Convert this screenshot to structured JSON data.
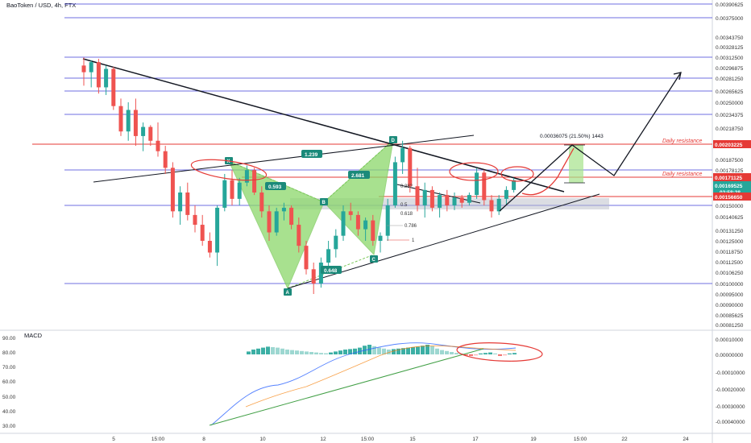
{
  "header": {
    "title": "BaoToken / USD, 4h, FTX"
  },
  "colors": {
    "up": "#26a69a",
    "down": "#ef5350",
    "level_line": "#3f3fd8",
    "resistance": "#e53935",
    "pattern": "#8bd86a",
    "macd_up": "#26a69a",
    "macd_down": "#ef5350",
    "macd_line": "#2962ff",
    "signal_line": "#f57c00",
    "trend_green": "#43a047",
    "label_teal": "#1b8a7a"
  },
  "chart_data": [
    {
      "type": "candlestick",
      "title": "BaoToken / USD, 4h, FTX",
      "y_axis_ticks": [
        "0.00390625",
        "0.00375000",
        "0.00343750",
        "0.00328125",
        "0.00312500",
        "0.00296875",
        "0.00281250",
        "0.00265625",
        "0.00250000",
        "0.00234375",
        "0.00218750",
        "0.00203125",
        "0.00187500",
        "0.00178125",
        "0.00171875",
        "0.00160000",
        "0.00150000",
        "0.00140625",
        "0.00131250",
        "0.00125000",
        "0.00118750",
        "0.00112500",
        "0.00106250",
        "0.00100000",
        "0.00095000",
        "0.00090000",
        "0.00085625",
        "0.00081250"
      ],
      "x_axis_ticks": [
        "5",
        "15:00",
        "8",
        "10",
        "12",
        "15:00",
        "15",
        "17",
        "19",
        "15:00",
        "22",
        "24"
      ],
      "price_tags": [
        {
          "text": "0.00203225",
          "kind": "resistance"
        },
        {
          "text": "0.00171125",
          "kind": "resistance"
        },
        {
          "text": "0.00169525",
          "kind": "current"
        },
        {
          "text": "02:58:28",
          "kind": "countdown"
        },
        {
          "text": "0.00156650",
          "kind": "resistance"
        }
      ],
      "horizontal_levels": [
        "0.00390625",
        "0.00375000",
        "0.00312500",
        "0.00281250",
        "0.00265625",
        "0.00234375",
        "0.00178125",
        "0.00150000",
        "0.00100000"
      ],
      "resistance_labels": [
        "Daily resistance",
        "Daily resistance"
      ],
      "harmonic_points": [
        "X",
        "A",
        "B",
        "C",
        "D"
      ],
      "ratio_labels": [
        "1.239",
        "0.593",
        "2.681",
        "0.648"
      ],
      "fib_labels": [
        "0.382",
        "0.5",
        "0.618",
        "0.786",
        "1"
      ],
      "target_label": "0.00036075 (21.50%) 1443",
      "candles": [
        {
          "t": 0,
          "o": 0.003,
          "h": 0.00312,
          "l": 0.00272,
          "c": 0.0029
        },
        {
          "t": 1,
          "o": 0.0029,
          "h": 0.00308,
          "l": 0.0027,
          "c": 0.00305
        },
        {
          "t": 2,
          "o": 0.00305,
          "h": 0.0031,
          "l": 0.00262,
          "c": 0.0027
        },
        {
          "t": 3,
          "o": 0.0027,
          "h": 0.003,
          "l": 0.0026,
          "c": 0.00295
        },
        {
          "t": 4,
          "o": 0.00295,
          "h": 0.00298,
          "l": 0.0024,
          "c": 0.00245
        },
        {
          "t": 5,
          "o": 0.00245,
          "h": 0.00255,
          "l": 0.0021,
          "c": 0.00215
        },
        {
          "t": 6,
          "o": 0.00215,
          "h": 0.0025,
          "l": 0.00205,
          "c": 0.0024
        },
        {
          "t": 7,
          "o": 0.0024,
          "h": 0.00255,
          "l": 0.002,
          "c": 0.0021
        },
        {
          "t": 8,
          "o": 0.0021,
          "h": 0.00225,
          "l": 0.00195,
          "c": 0.0022
        },
        {
          "t": 9,
          "o": 0.0022,
          "h": 0.00222,
          "l": 0.002,
          "c": 0.00205
        },
        {
          "t": 10,
          "o": 0.00205,
          "h": 0.00225,
          "l": 0.0019,
          "c": 0.00195
        },
        {
          "t": 11,
          "o": 0.00195,
          "h": 0.002,
          "l": 0.00175,
          "c": 0.0018
        },
        {
          "t": 12,
          "o": 0.0018,
          "h": 0.00185,
          "l": 0.0014,
          "c": 0.00145
        },
        {
          "t": 13,
          "o": 0.00145,
          "h": 0.00165,
          "l": 0.00135,
          "c": 0.0016
        },
        {
          "t": 14,
          "o": 0.0016,
          "h": 0.00168,
          "l": 0.00138,
          "c": 0.00142
        },
        {
          "t": 15,
          "o": 0.00142,
          "h": 0.0015,
          "l": 0.0013,
          "c": 0.00135
        },
        {
          "t": 16,
          "o": 0.00135,
          "h": 0.00142,
          "l": 0.00122,
          "c": 0.00125
        },
        {
          "t": 17,
          "o": 0.00125,
          "h": 0.0013,
          "l": 0.00115,
          "c": 0.00118
        },
        {
          "t": 18,
          "o": 0.00118,
          "h": 0.0015,
          "l": 0.0011,
          "c": 0.00148
        },
        {
          "t": 19,
          "o": 0.00148,
          "h": 0.00175,
          "l": 0.00145,
          "c": 0.0017
        },
        {
          "t": 20,
          "o": 0.0017,
          "h": 0.00178,
          "l": 0.0015,
          "c": 0.00155
        },
        {
          "t": 21,
          "o": 0.00155,
          "h": 0.00172,
          "l": 0.0015,
          "c": 0.00168
        },
        {
          "t": 22,
          "o": 0.00168,
          "h": 0.00182,
          "l": 0.00165,
          "c": 0.00178
        },
        {
          "t": 23,
          "o": 0.00178,
          "h": 0.0018,
          "l": 0.00158,
          "c": 0.0016
        },
        {
          "t": 24,
          "o": 0.0016,
          "h": 0.00165,
          "l": 0.0014,
          "c": 0.00145
        },
        {
          "t": 25,
          "o": 0.00145,
          "h": 0.0015,
          "l": 0.00125,
          "c": 0.0013
        },
        {
          "t": 26,
          "o": 0.0013,
          "h": 0.00148,
          "l": 0.00128,
          "c": 0.00145
        },
        {
          "t": 27,
          "o": 0.00145,
          "h": 0.00152,
          "l": 0.00138,
          "c": 0.00148
        },
        {
          "t": 28,
          "o": 0.00148,
          "h": 0.0015,
          "l": 0.00132,
          "c": 0.00135
        },
        {
          "t": 29,
          "o": 0.00135,
          "h": 0.0014,
          "l": 0.00118,
          "c": 0.00122
        },
        {
          "t": 30,
          "o": 0.00122,
          "h": 0.00125,
          "l": 0.00105,
          "c": 0.00108
        },
        {
          "t": 31,
          "o": 0.00108,
          "h": 0.00112,
          "l": 0.00095,
          "c": 0.001
        },
        {
          "t": 32,
          "o": 0.001,
          "h": 0.00115,
          "l": 0.00098,
          "c": 0.00112
        },
        {
          "t": 33,
          "o": 0.00112,
          "h": 0.00125,
          "l": 0.00108,
          "c": 0.0012
        },
        {
          "t": 34,
          "o": 0.0012,
          "h": 0.00132,
          "l": 0.00115,
          "c": 0.00128
        },
        {
          "t": 35,
          "o": 0.00128,
          "h": 0.0015,
          "l": 0.00125,
          "c": 0.00145
        },
        {
          "t": 36,
          "o": 0.00145,
          "h": 0.00152,
          "l": 0.00138,
          "c": 0.00142
        },
        {
          "t": 37,
          "o": 0.00142,
          "h": 0.00145,
          "l": 0.00128,
          "c": 0.00132
        },
        {
          "t": 38,
          "o": 0.00132,
          "h": 0.0014,
          "l": 0.00125,
          "c": 0.00138
        },
        {
          "t": 39,
          "o": 0.00138,
          "h": 0.00142,
          "l": 0.00122,
          "c": 0.00125
        },
        {
          "t": 40,
          "o": 0.00125,
          "h": 0.0013,
          "l": 0.00118,
          "c": 0.00128
        },
        {
          "t": 41,
          "o": 0.00128,
          "h": 0.00155,
          "l": 0.00125,
          "c": 0.0015
        },
        {
          "t": 42,
          "o": 0.0015,
          "h": 0.0019,
          "l": 0.00148,
          "c": 0.00185
        },
        {
          "t": 43,
          "o": 0.00185,
          "h": 0.00205,
          "l": 0.00175,
          "c": 0.00198
        },
        {
          "t": 44,
          "o": 0.00198,
          "h": 0.002,
          "l": 0.0016,
          "c": 0.00165
        },
        {
          "t": 45,
          "o": 0.00165,
          "h": 0.0018,
          "l": 0.00145,
          "c": 0.0015
        },
        {
          "t": 46,
          "o": 0.0015,
          "h": 0.00168,
          "l": 0.0014,
          "c": 0.00162
        },
        {
          "t": 47,
          "o": 0.00162,
          "h": 0.00165,
          "l": 0.00145,
          "c": 0.00148
        },
        {
          "t": 48,
          "o": 0.00148,
          "h": 0.0016,
          "l": 0.0014,
          "c": 0.00158
        },
        {
          "t": 49,
          "o": 0.00158,
          "h": 0.00162,
          "l": 0.00145,
          "c": 0.0015
        },
        {
          "t": 50,
          "o": 0.0015,
          "h": 0.0016,
          "l": 0.00146,
          "c": 0.00156
        },
        {
          "t": 51,
          "o": 0.00156,
          "h": 0.00158,
          "l": 0.00148,
          "c": 0.00152
        },
        {
          "t": 52,
          "o": 0.00152,
          "h": 0.0016,
          "l": 0.0015,
          "c": 0.00158
        },
        {
          "t": 53,
          "o": 0.00158,
          "h": 0.0018,
          "l": 0.00155,
          "c": 0.00176
        },
        {
          "t": 54,
          "o": 0.00176,
          "h": 0.00178,
          "l": 0.0015,
          "c": 0.00154
        },
        {
          "t": 55,
          "o": 0.00154,
          "h": 0.00158,
          "l": 0.0014,
          "c": 0.00145
        },
        {
          "t": 56,
          "o": 0.00145,
          "h": 0.00158,
          "l": 0.00142,
          "c": 0.00155
        },
        {
          "t": 57,
          "o": 0.00155,
          "h": 0.00165,
          "l": 0.0015,
          "c": 0.00162
        },
        {
          "t": 58,
          "o": 0.00162,
          "h": 0.00172,
          "l": 0.0016,
          "c": 0.0017
        }
      ]
    },
    {
      "type": "bar",
      "title": "MACD",
      "y_axis_ticks": [
        "0.00010000",
        "0.00000000",
        "-0.00010000",
        "-0.00020000",
        "-0.00030000",
        "-0.00040000"
      ],
      "left_axis_ticks": [
        "90.00",
        "80.00",
        "70.00",
        "60.00",
        "50.00",
        "40.00",
        "30.00"
      ],
      "histogram": [
        0.3,
        0.5,
        0.6,
        0.7,
        0.8,
        0.75,
        0.7,
        0.6,
        0.5,
        0.45,
        0.4,
        0.35,
        0.3,
        0.25,
        0.2,
        0.15,
        0.12,
        0.2,
        0.3,
        0.4,
        0.5,
        0.55,
        0.6,
        0.7,
        0.9,
        1.0,
        0.85,
        0.7,
        0.6,
        0.5,
        0.55,
        0.6,
        0.65,
        0.7,
        0.75,
        0.8,
        0.9,
        1.0,
        0.85,
        0.6,
        0.45,
        0.35,
        0.25,
        0.15,
        0.1,
        -0.1,
        -0.15,
        -0.1,
        0.1,
        0.15,
        0.2,
        0.1,
        -0.15,
        -0.1,
        0.1,
        0.15
      ]
    }
  ]
}
